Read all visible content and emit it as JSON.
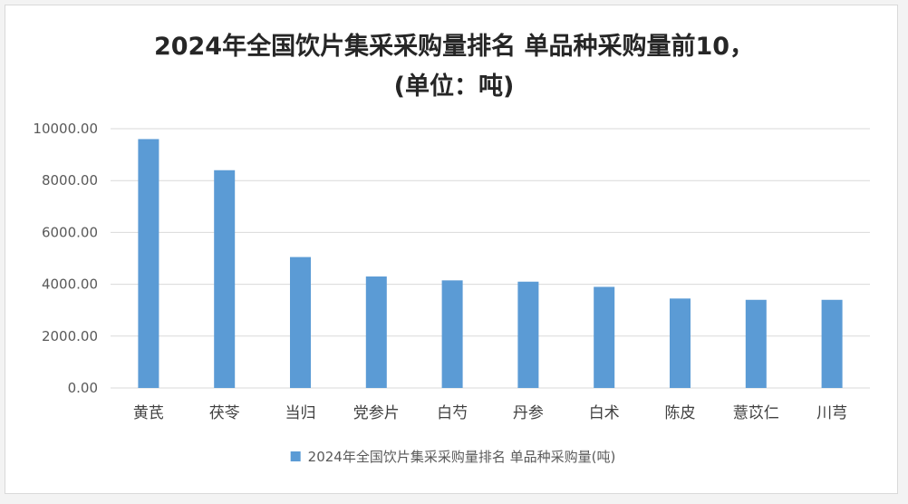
{
  "colors": {
    "bar": "#5b9bd5",
    "grid": "#d9d9d9"
  },
  "chart_data": {
    "type": "bar",
    "title_line1": "2024年全国饮片集采采购量排名 单品种采购量前10，",
    "title_line2": "(单位：吨)",
    "categories": [
      "黄芪",
      "茯苓",
      "当归",
      "党参片",
      "白芍",
      "丹参",
      "白术",
      "陈皮",
      "薏苡仁",
      "川芎"
    ],
    "series": [
      {
        "name": "2024年全国饮片集采采购量排名 单品种采购量(吨)",
        "values": [
          9600,
          8400,
          5050,
          4300,
          4150,
          4100,
          3900,
          3450,
          3400,
          3400
        ]
      }
    ],
    "ylim": [
      0,
      10000
    ],
    "yticks": [
      "0.00",
      "2000.00",
      "4000.00",
      "6000.00",
      "8000.00",
      "10000.00"
    ],
    "ytick_values": [
      0,
      2000,
      4000,
      6000,
      8000,
      10000
    ],
    "grid": true,
    "legend": "bottom-center"
  }
}
